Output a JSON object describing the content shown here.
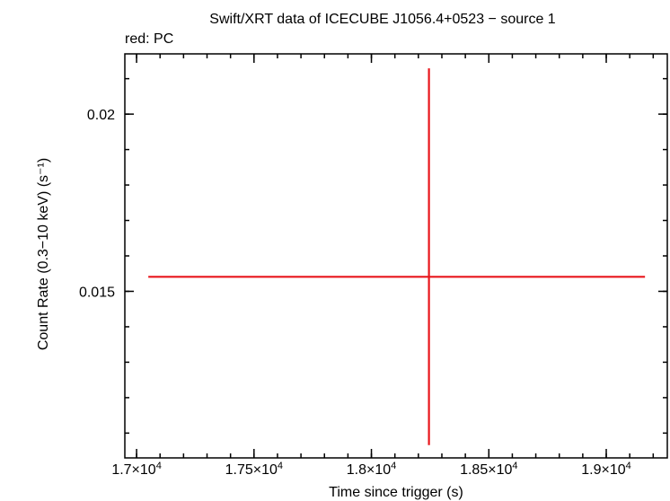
{
  "chart_data": {
    "type": "scatter",
    "title": "Swift/XRT data of ICECUBE J1056.4+0523 − source 1",
    "subtitle": "red: PC",
    "xlabel": "Time since trigger (s)",
    "ylabel": "Count Rate (0.3−10 keV) (s⁻¹)",
    "xlim": [
      16950,
      19260
    ],
    "ylim": [
      0.0103,
      0.0217
    ],
    "log_y": false,
    "grid": false,
    "x_ticks": [
      {
        "value": 17000,
        "mant": "1.7×10",
        "exp": "4"
      },
      {
        "value": 17500,
        "mant": "1.75×10",
        "exp": "4"
      },
      {
        "value": 18000,
        "mant": "1.8×10",
        "exp": "4"
      },
      {
        "value": 18500,
        "mant": "1.85×10",
        "exp": "4"
      },
      {
        "value": 19000,
        "mant": "1.9×10",
        "exp": "4"
      }
    ],
    "x_minor_step": 100,
    "y_ticks": [
      {
        "value": 0.015,
        "label": "0.015"
      },
      {
        "value": 0.02,
        "label": "0.02"
      }
    ],
    "y_minor_step": 0.001,
    "series": [
      {
        "name": "PC",
        "color": "#e8161c",
        "points": [
          {
            "x": 18245,
            "y": 0.01541,
            "xerr_minus": 1195,
            "xerr_plus": 920,
            "yerr_minus": 0.00475,
            "yerr_plus": 0.00588
          }
        ]
      }
    ]
  }
}
